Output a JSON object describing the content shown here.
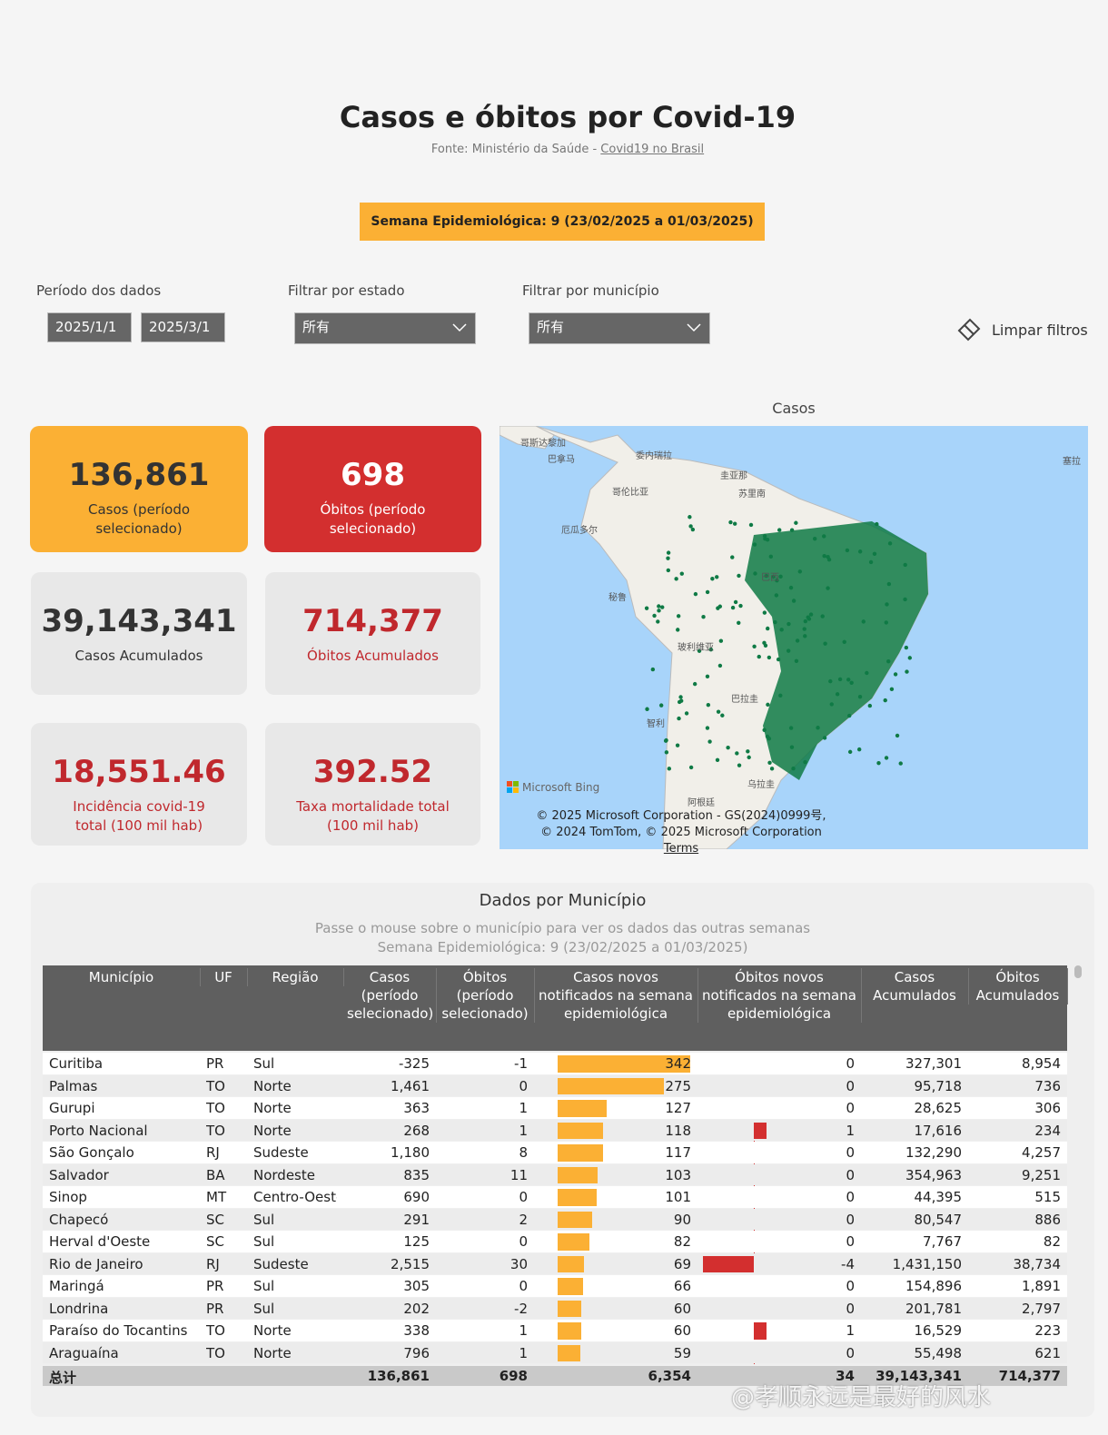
{
  "header": {
    "title": "Casos e óbitos por Covid-19",
    "source_prefix": "Fonte: Ministério da Saúde - ",
    "source_link": "Covid19 no Brasil"
  },
  "week_banner": "Semana Epidemiológica: 9 (23/02/2025 a 01/03/2025)",
  "filters": {
    "period_label": "Período dos dados",
    "period_start": "2025/1/1",
    "period_end": "2025/3/1",
    "state_label": "Filtrar por estado",
    "state_value": "所有",
    "municipality_label": "Filtrar por município",
    "municipality_value": "所有",
    "clear": "Limpar filtros"
  },
  "cards": [
    {
      "value": "136,861",
      "label": "Casos (período selecionado)"
    },
    {
      "value": "698",
      "label": "Óbitos (período selecionado)"
    },
    {
      "value": "39,143,341",
      "label": "Casos Acumulados"
    },
    {
      "value": "714,377",
      "label": "Óbitos Acumulados"
    },
    {
      "value": "18,551.46",
      "label": "Incidência covid-19 total (100 mil hab)"
    },
    {
      "value": "392.52",
      "label": "Taxa mortalidade total (100 mil hab)"
    }
  ],
  "map": {
    "title": "Casos",
    "labels": [
      "哥斯达黎加",
      "巴拿马",
      "委内瑞拉",
      "圭亚那",
      "苏里南",
      "哥伦比亚",
      "厄瓜多尔",
      "巴西",
      "秘鲁",
      "玻利维亚",
      "巴拉圭",
      "智利",
      "乌拉圭",
      "阿根廷",
      "塞拉"
    ],
    "brand": "Microsoft Bing",
    "attribution": "© 2025 Microsoft Corporation - GS(2024)0999号, © 2024 TomTom, © 2025 Microsoft Corporation",
    "terms": "Terms"
  },
  "table": {
    "title": "Dados por Município",
    "subtitle": "Passe o mouse sobre o município para ver os dados das outras semanas",
    "week": "Semana Epidemiológica: 9 (23/02/2025 a 01/03/2025)",
    "columns": [
      "Município",
      "UF",
      "Região",
      "Casos (período selecionado)",
      "Óbitos (período selecionado)",
      "Casos novos notificados na semana epidemiológica",
      "Óbitos novos notificados na semana epidemiológica",
      "Casos Acumulados",
      "Óbitos Acumulados"
    ],
    "rows": [
      [
        "Curitiba",
        "PR",
        "Sul",
        "-325",
        "-1",
        342,
        0,
        "327,301",
        "8,954"
      ],
      [
        "Palmas",
        "TO",
        "Norte",
        "1,461",
        "0",
        275,
        0,
        "95,718",
        "736"
      ],
      [
        "Gurupi",
        "TO",
        "Norte",
        "363",
        "1",
        127,
        0,
        "28,625",
        "306"
      ],
      [
        "Porto Nacional",
        "TO",
        "Norte",
        "268",
        "1",
        118,
        1,
        "17,616",
        "234"
      ],
      [
        "São Gonçalo",
        "RJ",
        "Sudeste",
        "1,180",
        "8",
        117,
        0,
        "132,290",
        "4,257"
      ],
      [
        "Salvador",
        "BA",
        "Nordeste",
        "835",
        "11",
        103,
        0,
        "354,963",
        "9,251"
      ],
      [
        "Sinop",
        "MT",
        "Centro-Oeste",
        "690",
        "0",
        101,
        0,
        "44,395",
        "515"
      ],
      [
        "Chapecó",
        "SC",
        "Sul",
        "291",
        "2",
        90,
        0,
        "80,547",
        "886"
      ],
      [
        "Herval d'Oeste",
        "SC",
        "Sul",
        "125",
        "0",
        82,
        0,
        "7,767",
        "82"
      ],
      [
        "Rio de Janeiro",
        "RJ",
        "Sudeste",
        "2,515",
        "30",
        69,
        -4,
        "1,431,150",
        "38,734"
      ],
      [
        "Maringá",
        "PR",
        "Sul",
        "305",
        "0",
        66,
        0,
        "154,896",
        "1,891"
      ],
      [
        "Londrina",
        "PR",
        "Sul",
        "202",
        "-2",
        60,
        0,
        "201,781",
        "2,797"
      ],
      [
        "Paraíso do Tocantins",
        "TO",
        "Norte",
        "338",
        "1",
        60,
        1,
        "16,529",
        "223"
      ],
      [
        "Araguaína",
        "TO",
        "Norte",
        "796",
        "1",
        59,
        0,
        "55,498",
        "621"
      ]
    ],
    "total": {
      "label": "总计",
      "cells": [
        "136,861",
        "698",
        "6,354",
        "34",
        "39,143,341",
        "714,377"
      ]
    }
  },
  "watermark": "@孝顺永远是最好的风水"
}
